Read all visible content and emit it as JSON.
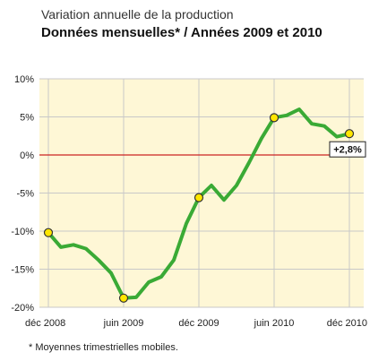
{
  "chart_data": {
    "type": "line",
    "title": "Variation annuelle de la production",
    "subtitle": "Données mensuelles* / Années 2009 et 2010",
    "footnote": "* Moyennes trimestrielles mobiles.",
    "x_tick_labels": [
      "déc 2008",
      "juin 2009",
      "déc 2009",
      "juin 2010",
      "déc 2010"
    ],
    "y_tick_labels": [
      "10%",
      "5%",
      "0%",
      "-5%",
      "-10%",
      "-15%",
      "-20%"
    ],
    "y_ticks": [
      10,
      5,
      0,
      -5,
      -10,
      -15,
      -20
    ],
    "ylim": [
      -20,
      10
    ],
    "x_range": [
      0,
      24
    ],
    "reference_line": 0,
    "series": [
      {
        "values": [
          -10.2,
          -12.1,
          -11.8,
          -12.3,
          -13.8,
          -15.5,
          -18.8,
          -18.7,
          -16.7,
          -16.0,
          -13.8,
          -9.0,
          -5.6,
          -4.0,
          -5.9,
          -4.0,
          -1.0,
          2.2,
          4.9,
          5.2,
          6.0,
          4.1,
          3.8,
          2.4,
          2.8
        ],
        "color": "#3aaa35"
      }
    ],
    "highlight_points": [
      {
        "x": 0,
        "y": -10.2
      },
      {
        "x": 6,
        "y": -18.8
      },
      {
        "x": 12,
        "y": -5.6
      },
      {
        "x": 18,
        "y": 4.9
      },
      {
        "x": 24,
        "y": 2.8
      }
    ],
    "annotation": {
      "x": 24,
      "y": 2.8,
      "text": "+2,8%"
    },
    "colors": {
      "plot_background": "#fef7d6",
      "grid": "#c8c8c8",
      "zero_line": "#cc2222",
      "line": "#3aaa35",
      "marker_fill": "#ffe600",
      "marker_stroke": "#333333"
    }
  }
}
